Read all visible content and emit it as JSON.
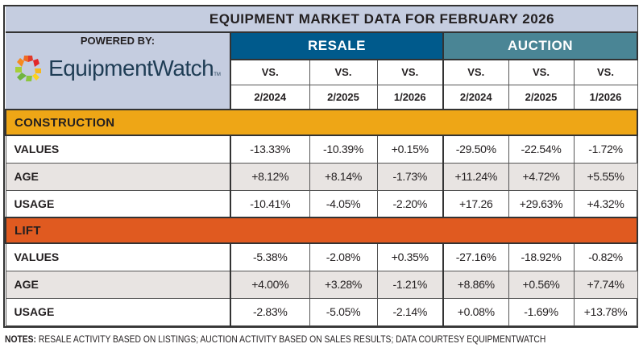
{
  "header": {
    "title": "EQUIPMENT MARKET DATA FOR FEBRUARY 2026",
    "powered_by": "POWERED BY:",
    "logo_text": "EquipmentWatch",
    "logo_tm": "TM"
  },
  "groups": [
    {
      "label": "RESALE",
      "color": "#005a8c"
    },
    {
      "label": "AUCTION",
      "color": "#4a8595"
    }
  ],
  "columns": [
    {
      "vs": "VS.",
      "date": "2/2024"
    },
    {
      "vs": "VS.",
      "date": "2/2025"
    },
    {
      "vs": "VS.",
      "date": "1/2026"
    },
    {
      "vs": "VS.",
      "date": "2/2024"
    },
    {
      "vs": "VS.",
      "date": "2/2025"
    },
    {
      "vs": "VS.",
      "date": "1/2026"
    }
  ],
  "colors": {
    "construction": "#eea616",
    "lift": "#e05a20",
    "header_bg": "#c5cde0",
    "alt_row": "#e8e4e2"
  },
  "notes": {
    "label": "NOTES:",
    "text": " RESALE ACTIVITY BASED ON LISTINGS; AUCTION ACTIVITY BASED ON SALES RESULTS; DATA COURTESY EQUIPMENTWATCH"
  },
  "chart_data": {
    "type": "table",
    "title": "EQUIPMENT MARKET DATA FOR FEBRUARY 2026",
    "column_groups": [
      "RESALE",
      "AUCTION"
    ],
    "columns": [
      "RESALE VS. 2/2024",
      "RESALE VS. 2/2025",
      "RESALE VS. 1/2026",
      "AUCTION VS. 2/2024",
      "AUCTION VS. 2/2025",
      "AUCTION VS. 1/2026"
    ],
    "sections": [
      {
        "name": "CONSTRUCTION",
        "rows": [
          {
            "label": "VALUES",
            "values": [
              "-13.33%",
              "-10.39%",
              "+0.15%",
              "-29.50%",
              "-22.54%",
              "-1.72%"
            ]
          },
          {
            "label": "AGE",
            "values": [
              "+8.12%",
              "+8.14%",
              "-1.73%",
              "+11.24%",
              "+4.72%",
              "+5.55%"
            ]
          },
          {
            "label": "USAGE",
            "values": [
              "-10.41%",
              "-4.05%",
              "-2.20%",
              "+17.26",
              "+29.63%",
              "+4.32%"
            ]
          }
        ]
      },
      {
        "name": "LIFT",
        "rows": [
          {
            "label": "VALUES",
            "values": [
              "-5.38%",
              "-2.08%",
              "+0.35%",
              "-27.16%",
              "-18.92%",
              "-0.82%"
            ]
          },
          {
            "label": "AGE",
            "values": [
              "+4.00%",
              "+3.28%",
              "-1.21%",
              "+8.86%",
              "+0.56%",
              "+7.74%"
            ]
          },
          {
            "label": "USAGE",
            "values": [
              "-2.83%",
              "-5.05%",
              "-2.14%",
              "+0.08%",
              "-1.69%",
              "+13.78%"
            ]
          }
        ]
      }
    ]
  }
}
